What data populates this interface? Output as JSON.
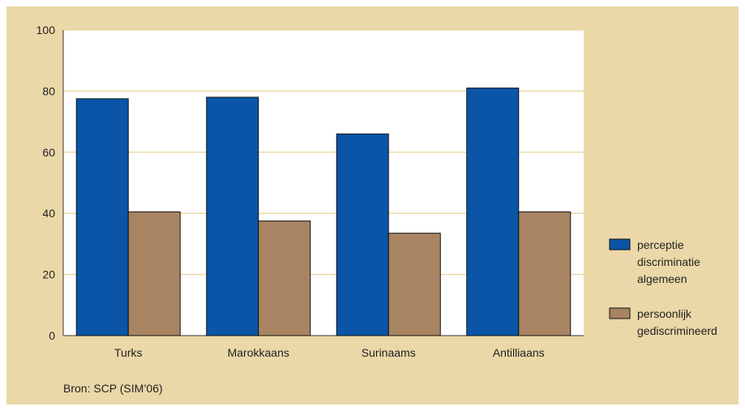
{
  "colors": {
    "panel_background": "#ebd8a8",
    "plot_background": "#ffffff",
    "gridline": "#ebd8a8",
    "series_1": "#0a55a8",
    "series_2": "#a88462",
    "bar_outline": "#111111"
  },
  "source": "Bron: SCP (SIM’06)",
  "chart_data": {
    "type": "bar",
    "title": "",
    "xlabel": "",
    "ylabel": "",
    "ylim": [
      0,
      100
    ],
    "yticks": [
      0,
      20,
      40,
      60,
      80,
      100
    ],
    "grid": true,
    "legend_position": "right",
    "categories": [
      "Turks",
      "Marokkaans",
      "Surinaams",
      "Antilliaans"
    ],
    "series": [
      {
        "name": "perceptie discriminatie algemeen",
        "legend_lines": [
          "perceptie",
          "discriminatie",
          "algemeen"
        ],
        "values": [
          77.5,
          78,
          66,
          81
        ]
      },
      {
        "name": "persoonlijk gediscrimineerd",
        "legend_lines": [
          "persoonlijk",
          "gediscrimineerd"
        ],
        "values": [
          40.5,
          37.5,
          33.5,
          40.5
        ]
      }
    ]
  }
}
